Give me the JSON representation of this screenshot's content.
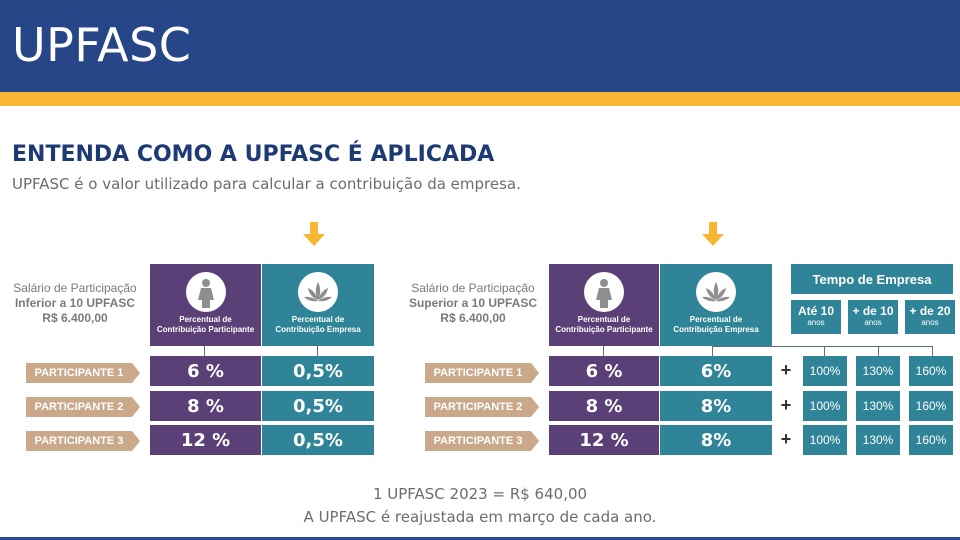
{
  "header": {
    "title": "UPFASC"
  },
  "colors": {
    "navy": "#264687",
    "gold": "#f7b733",
    "purple": "#5b4078",
    "teal": "#2f8497",
    "tan": "#c9a98a"
  },
  "page": {
    "title": "ENTENDA COMO A UPFASC É APLICADA",
    "subtitle": "UPFASC é o valor utilizado para calcular a contribuição da empresa."
  },
  "left_table": {
    "salary_line1": "Salário de Participação",
    "salary_line2": "Inferior a 10 UPFASC",
    "salary_line3": "R$ 6.400,00",
    "col_participant_l1": "Percentual de",
    "col_participant_l2": "Contribuição Participante",
    "col_company_l1": "Percentual de",
    "col_company_l2": "Contribuição Empresa",
    "participant_icon": "woman-icon",
    "company_icon": "leaf-logo-icon",
    "rows": [
      {
        "label": "PARTICIPANTE 1",
        "participant": "6 %",
        "company": "0,5%"
      },
      {
        "label": "PARTICIPANTE 2",
        "participant": "8 %",
        "company": "0,5%"
      },
      {
        "label": "PARTICIPANTE 3",
        "participant": "12 %",
        "company": "0,5%"
      }
    ]
  },
  "right_table": {
    "salary_line1": "Salário de Participação",
    "salary_line2": "Superior a 10 UPFASC",
    "salary_line3": "R$ 6.400,00",
    "col_participant_l1": "Percentual de",
    "col_participant_l2": "Contribuição Participante",
    "col_company_l1": "Percentual de",
    "col_company_l2": "Contribuição Empresa",
    "rows": [
      {
        "label": "PARTICIPANTE 1",
        "participant": "6 %",
        "company": "6%",
        "plus": "+",
        "tiers": [
          "100%",
          "130%",
          "160%"
        ]
      },
      {
        "label": "PARTICIPANTE 2",
        "participant": "8 %",
        "company": "8%",
        "plus": "+",
        "tiers": [
          "100%",
          "130%",
          "160%"
        ]
      },
      {
        "label": "PARTICIPANTE 3",
        "participant": "12 %",
        "company": "8%",
        "plus": "+",
        "tiers": [
          "100%",
          "130%",
          "160%"
        ]
      }
    ],
    "tempo": {
      "title": "Tempo de Empresa",
      "tiers": [
        {
          "value": "Até 10",
          "unit": "anos"
        },
        {
          "value": "+ de 10",
          "unit": "anos"
        },
        {
          "value": "+ de 20",
          "unit": "anos"
        }
      ]
    }
  },
  "footer": {
    "line1": "1 UPFASC 2023 = R$ 640,00",
    "line2": "A UPFASC é reajustada em março de cada ano."
  }
}
